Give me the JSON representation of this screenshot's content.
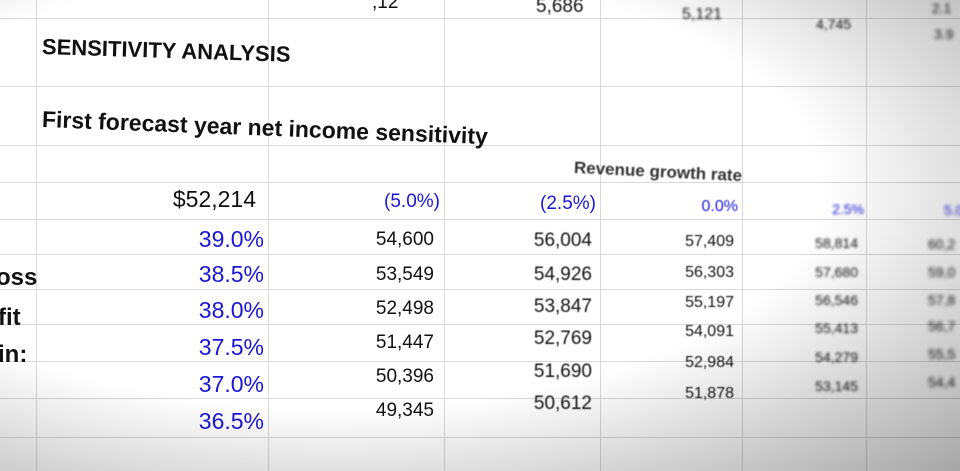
{
  "top_row": {
    "partial": ",12",
    "v1": "5,686",
    "v2": "5,121",
    "v3": "4,745",
    "v4": "2.1",
    "v5_above": "3.9"
  },
  "section_title": "SENSITIVITY ANALYSIS",
  "subtitle": "First forecast year net income  sensitivity",
  "column_header": "Revenue growth rate",
  "corner_value": "$52,214",
  "growth_rates": [
    "(5.0%)",
    "(2.5%)",
    "0.0%",
    "2.5%",
    "5.0"
  ],
  "row_side_labels": [
    "oss",
    "fit",
    "in:"
  ],
  "rows": [
    {
      "margin": "39.0%",
      "values": [
        "54,600",
        "56,004",
        "57,409",
        "58,814",
        "60,2"
      ]
    },
    {
      "margin": "38.5%",
      "values": [
        "53,549",
        "54,926",
        "56,303",
        "57,680",
        "59,0"
      ]
    },
    {
      "margin": "38.0%",
      "values": [
        "52,498",
        "53,847",
        "55,197",
        "56,546",
        "57,8"
      ]
    },
    {
      "margin": "37.5%",
      "values": [
        "51,447",
        "52,769",
        "54,091",
        "55,413",
        "56,7"
      ]
    },
    {
      "margin": "37.0%",
      "values": [
        "50,396",
        "51,690",
        "52,984",
        "54,279",
        "55,5"
      ]
    },
    {
      "margin": "36.5%",
      "values": [
        "49,345",
        "50,612",
        "51,878",
        "53,145",
        "54,4"
      ]
    }
  ]
}
